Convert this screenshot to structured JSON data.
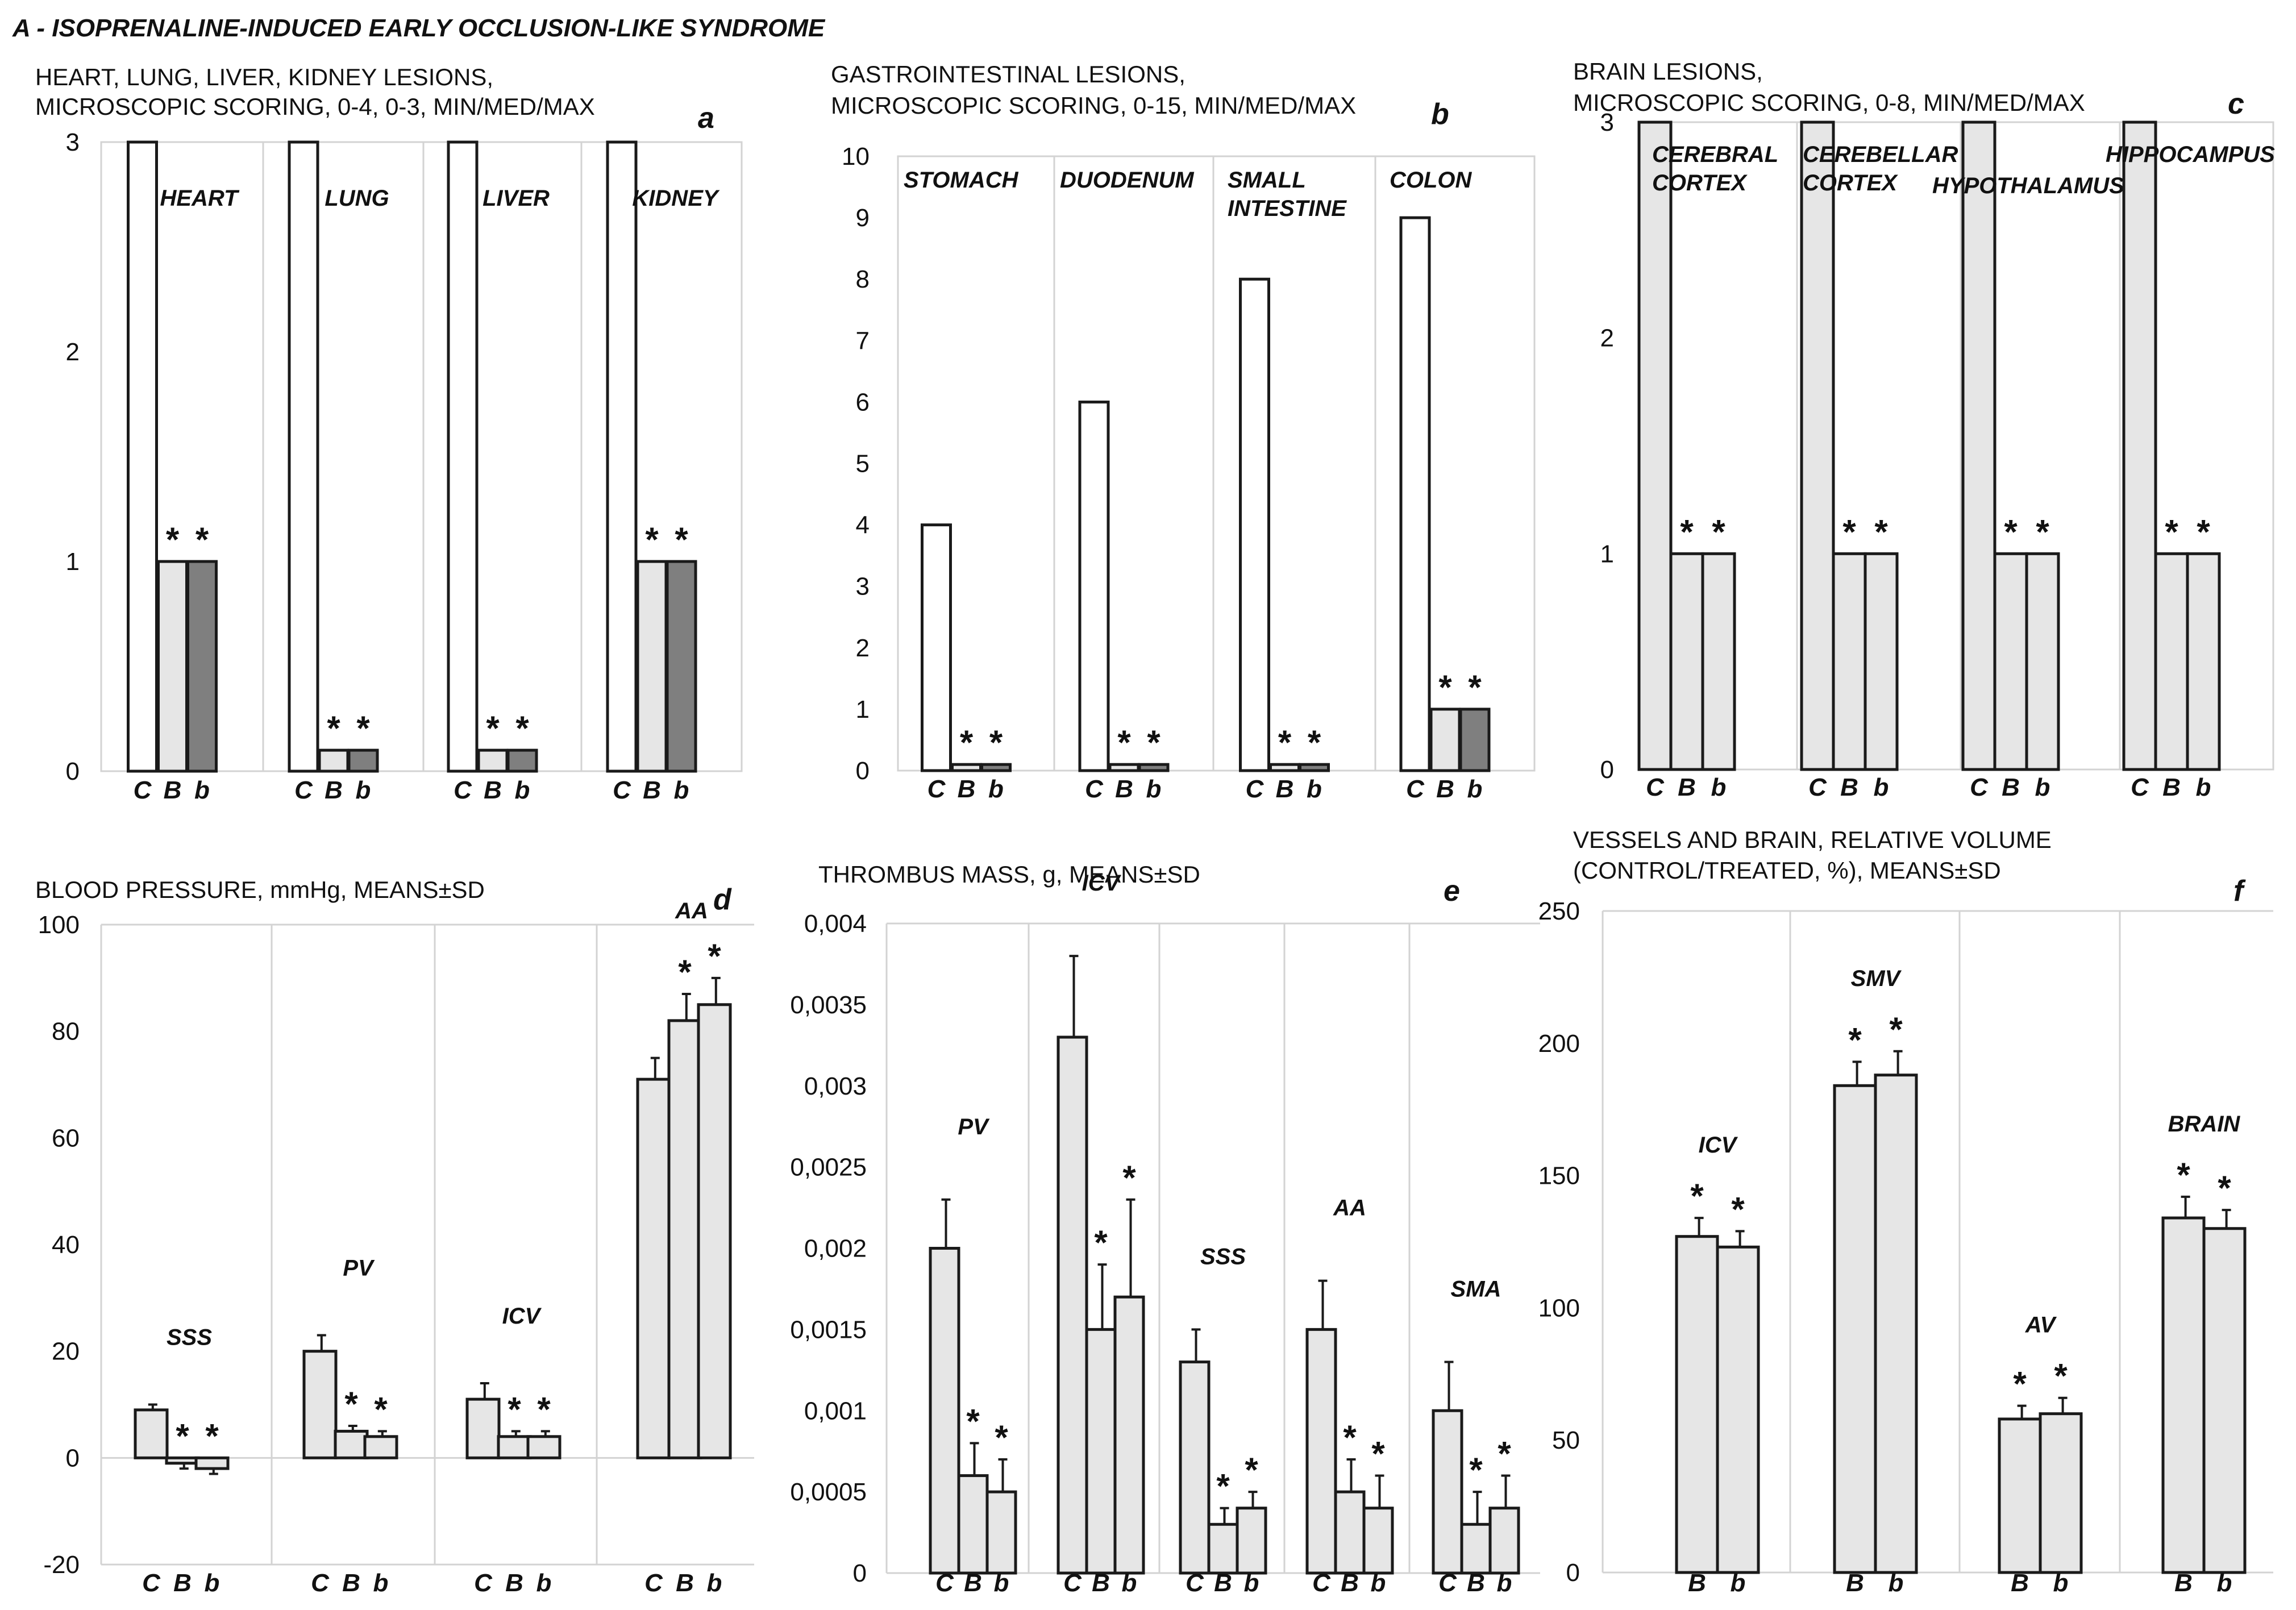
{
  "main_title": "A - ISOPRENALINE-INDUCED EARLY OCCLUSION-LIKE SYNDROME",
  "colors": {
    "white": "#ffffff",
    "light": "#e6e6e6",
    "dark": "#7f7f7f",
    "outline": "#1a1a1a",
    "grid": "#d3d3d3"
  },
  "chart_data": [
    {
      "id": "a",
      "type": "bar",
      "title_lines": [
        "HEART, LUNG, LIVER, KIDNEY LESIONS,",
        "MICROSCOPIC SCORING, 0-4, 0-3, MIN/MED/MAX"
      ],
      "panel_letter": "a",
      "ylim": [
        0,
        3
      ],
      "ticks": [
        0,
        1,
        2,
        3
      ],
      "tick_labels": [
        "0",
        "1",
        "2",
        "3"
      ],
      "groups": [
        {
          "name": "HEART",
          "bars": [
            {
              "label": "C",
              "value": 3,
              "color": "white"
            },
            {
              "label": "B",
              "value": 1,
              "color": "light",
              "star": "*"
            },
            {
              "label": "b",
              "value": 1,
              "color": "dark",
              "star": "*"
            }
          ]
        },
        {
          "name": "LUNG",
          "bars": [
            {
              "label": "C",
              "value": 3,
              "color": "white"
            },
            {
              "label": "B",
              "value": 0.1,
              "color": "light",
              "star": "*"
            },
            {
              "label": "b",
              "value": 0.1,
              "color": "dark",
              "star": "*"
            }
          ]
        },
        {
          "name": "LIVER",
          "bars": [
            {
              "label": "C",
              "value": 3,
              "color": "white"
            },
            {
              "label": "B",
              "value": 0.1,
              "color": "light",
              "star": "*"
            },
            {
              "label": "b",
              "value": 0.1,
              "color": "dark",
              "star": "*"
            }
          ]
        },
        {
          "name": "KIDNEY",
          "bars": [
            {
              "label": "C",
              "value": 3,
              "color": "white"
            },
            {
              "label": "B",
              "value": 1,
              "color": "light",
              "star": "*"
            },
            {
              "label": "b",
              "value": 1,
              "color": "dark",
              "star": "*"
            }
          ]
        }
      ]
    },
    {
      "id": "b",
      "type": "bar",
      "title_lines": [
        "GASTROINTESTINAL LESIONS,",
        "MICROSCOPIC SCORING, 0-15, MIN/MED/MAX"
      ],
      "panel_letter": "b",
      "ylim": [
        0,
        10
      ],
      "ticks": [
        0,
        1,
        2,
        3,
        4,
        5,
        6,
        7,
        8,
        9,
        10
      ],
      "tick_labels": [
        "0",
        "1",
        "2",
        "3",
        "4",
        "5",
        "6",
        "7",
        "8",
        "9",
        "10"
      ],
      "groups": [
        {
          "name": "STOMACH",
          "bars": [
            {
              "label": "C",
              "value": 4,
              "color": "white"
            },
            {
              "label": "B",
              "value": 0.1,
              "color": "light",
              "star": "*"
            },
            {
              "label": "b",
              "value": 0.1,
              "color": "dark",
              "star": "*"
            }
          ]
        },
        {
          "name": "DUODENUM",
          "bars": [
            {
              "label": "C",
              "value": 6,
              "color": "white"
            },
            {
              "label": "B",
              "value": 0.1,
              "color": "light",
              "star": "*"
            },
            {
              "label": "b",
              "value": 0.1,
              "color": "dark",
              "star": "*"
            }
          ]
        },
        {
          "name": "SMALL INTESTINE",
          "bars": [
            {
              "label": "C",
              "value": 8,
              "color": "white"
            },
            {
              "label": "B",
              "value": 0.1,
              "color": "light",
              "star": "*"
            },
            {
              "label": "b",
              "value": 0.1,
              "color": "dark",
              "star": "*"
            }
          ]
        },
        {
          "name": "COLON",
          "bars": [
            {
              "label": "C",
              "value": 9,
              "color": "white"
            },
            {
              "label": "B",
              "value": 1,
              "color": "light",
              "star": "*"
            },
            {
              "label": "b",
              "value": 1,
              "color": "dark",
              "star": "*"
            }
          ]
        }
      ]
    },
    {
      "id": "c",
      "type": "bar",
      "title_lines": [
        "BRAIN LESIONS,",
        "MICROSCOPIC SCORING, 0-8, MIN/MED/MAX"
      ],
      "panel_letter": "c",
      "ylim": [
        0,
        3
      ],
      "ticks": [
        0,
        1,
        2,
        3
      ],
      "tick_labels": [
        "0",
        "1",
        "2",
        "3"
      ],
      "groups": [
        {
          "name": "CEREBRAL CORTEX",
          "bars": [
            {
              "label": "C",
              "value": 3,
              "color": "light"
            },
            {
              "label": "B",
              "value": 1,
              "color": "light",
              "star": "*"
            },
            {
              "label": "b",
              "value": 1,
              "color": "light",
              "star": "*"
            }
          ]
        },
        {
          "name": "CEREBELLAR CORTEX",
          "bars": [
            {
              "label": "C",
              "value": 3,
              "color": "light"
            },
            {
              "label": "B",
              "value": 1,
              "color": "light",
              "star": "*"
            },
            {
              "label": "b",
              "value": 1,
              "color": "light",
              "star": "*"
            }
          ]
        },
        {
          "name": "HYPOTHALAMUS",
          "bars": [
            {
              "label": "C",
              "value": 3,
              "color": "light"
            },
            {
              "label": "B",
              "value": 1,
              "color": "light",
              "star": "*"
            },
            {
              "label": "b",
              "value": 1,
              "color": "light",
              "star": "*"
            }
          ]
        },
        {
          "name": "HIPPOCAMPUS",
          "bars": [
            {
              "label": "C",
              "value": 3,
              "color": "light"
            },
            {
              "label": "B",
              "value": 1,
              "color": "light",
              "star": "*"
            },
            {
              "label": "b",
              "value": 1,
              "color": "light",
              "star": "*"
            }
          ]
        }
      ]
    },
    {
      "id": "d",
      "type": "bar",
      "title_lines": [
        "BLOOD PRESSURE, mmHg, MEANS±SD"
      ],
      "panel_letter": "d",
      "ylim": [
        -20,
        100
      ],
      "ticks": [
        -20,
        0,
        20,
        40,
        60,
        80,
        100
      ],
      "tick_labels": [
        "-20",
        "0",
        "20",
        "40",
        "60",
        "80",
        "100"
      ],
      "groups": [
        {
          "name": "SSS",
          "bars": [
            {
              "label": "C",
              "value": 9,
              "err": 1,
              "color": "light"
            },
            {
              "label": "B",
              "value": -1,
              "err": 1,
              "color": "light",
              "star": "*"
            },
            {
              "label": "b",
              "value": -2,
              "err": 1,
              "color": "light",
              "star": "*"
            }
          ]
        },
        {
          "name": "PV",
          "bars": [
            {
              "label": "C",
              "value": 20,
              "err": 3,
              "color": "light"
            },
            {
              "label": "B",
              "value": 5,
              "err": 1,
              "color": "light",
              "star": "*"
            },
            {
              "label": "b",
              "value": 4,
              "err": 1,
              "color": "light",
              "star": "*"
            }
          ]
        },
        {
          "name": "ICV",
          "bars": [
            {
              "label": "C",
              "value": 11,
              "err": 3,
              "color": "light"
            },
            {
              "label": "B",
              "value": 4,
              "err": 1,
              "color": "light",
              "star": "*"
            },
            {
              "label": "b",
              "value": 4,
              "err": 1,
              "color": "light",
              "star": "*"
            }
          ]
        },
        {
          "name": "AA",
          "bars": [
            {
              "label": "C",
              "value": 71,
              "err": 4,
              "color": "light"
            },
            {
              "label": "B",
              "value": 82,
              "err": 5,
              "color": "light",
              "star": "*"
            },
            {
              "label": "b",
              "value": 85,
              "err": 5,
              "color": "light",
              "star": "*"
            }
          ]
        }
      ]
    },
    {
      "id": "e",
      "type": "bar",
      "title_lines": [
        "THROMBUS MASS, g, MEANS±SD"
      ],
      "panel_letter": "e",
      "ylim": [
        0,
        0.004
      ],
      "ticks": [
        0,
        0.0005,
        0.001,
        0.0015,
        0.002,
        0.0025,
        0.003,
        0.0035,
        0.004
      ],
      "tick_labels": [
        "0",
        "0,0005",
        "0,001",
        "0,0015",
        "0,002",
        "0,0025",
        "0,003",
        "0,0035",
        "0,004"
      ],
      "groups": [
        {
          "name": "PV",
          "bars": [
            {
              "label": "C",
              "value": 0.002,
              "err": 0.0003,
              "color": "light"
            },
            {
              "label": "B",
              "value": 0.0006,
              "err": 0.0002,
              "color": "light",
              "star": "*"
            },
            {
              "label": "b",
              "value": 0.0005,
              "err": 0.0002,
              "color": "light",
              "star": "*"
            }
          ]
        },
        {
          "name": "ICV",
          "bars": [
            {
              "label": "C",
              "value": 0.0033,
              "err": 0.0005,
              "color": "light"
            },
            {
              "label": "B",
              "value": 0.0015,
              "err": 0.0004,
              "color": "light",
              "star": "*"
            },
            {
              "label": "b",
              "value": 0.0017,
              "err": 0.0006,
              "color": "light",
              "star": "*"
            }
          ]
        },
        {
          "name": "SSS",
          "bars": [
            {
              "label": "C",
              "value": 0.0013,
              "err": 0.0002,
              "color": "light"
            },
            {
              "label": "B",
              "value": 0.0003,
              "err": 0.0001,
              "color": "light",
              "star": "*"
            },
            {
              "label": "b",
              "value": 0.0004,
              "err": 0.0001,
              "color": "light",
              "star": "*"
            }
          ]
        },
        {
          "name": "AA",
          "bars": [
            {
              "label": "C",
              "value": 0.0015,
              "err": 0.0003,
              "color": "light"
            },
            {
              "label": "B",
              "value": 0.0005,
              "err": 0.0002,
              "color": "light",
              "star": "*"
            },
            {
              "label": "b",
              "value": 0.0004,
              "err": 0.0002,
              "color": "light",
              "star": "*"
            }
          ]
        },
        {
          "name": "SMA",
          "bars": [
            {
              "label": "C",
              "value": 0.001,
              "err": 0.0003,
              "color": "light"
            },
            {
              "label": "B",
              "value": 0.0003,
              "err": 0.0002,
              "color": "light",
              "star": "*"
            },
            {
              "label": "b",
              "value": 0.0004,
              "err": 0.0002,
              "color": "light",
              "star": "*"
            }
          ]
        }
      ]
    },
    {
      "id": "f",
      "type": "bar",
      "title_lines": [
        "VESSELS AND BRAIN, RELATIVE VOLUME",
        "(CONTROL/TREATED, %), MEANS±SD"
      ],
      "panel_letter": "f",
      "ylim": [
        0,
        250
      ],
      "ticks": [
        0,
        50,
        100,
        150,
        200,
        250
      ],
      "tick_labels": [
        "0",
        "50",
        "100",
        "150",
        "200",
        "250"
      ],
      "groups": [
        {
          "name": "ICV",
          "bars": [
            {
              "label": "B",
              "value": 127,
              "err": 7,
              "color": "light",
              "star": "*"
            },
            {
              "label": "b",
              "value": 123,
              "err": 6,
              "color": "light",
              "star": "*"
            }
          ]
        },
        {
          "name": "SMV",
          "bars": [
            {
              "label": "B",
              "value": 184,
              "err": 9,
              "color": "light",
              "star": "*"
            },
            {
              "label": "b",
              "value": 188,
              "err": 9,
              "color": "light",
              "star": "*"
            }
          ]
        },
        {
          "name": "AV",
          "bars": [
            {
              "label": "B",
              "value": 58,
              "err": 5,
              "color": "light",
              "star": "*"
            },
            {
              "label": "b",
              "value": 60,
              "err": 6,
              "color": "light",
              "star": "*"
            }
          ]
        },
        {
          "name": "BRAIN",
          "bars": [
            {
              "label": "B",
              "value": 134,
              "err": 8,
              "color": "light",
              "star": "*"
            },
            {
              "label": "b",
              "value": 130,
              "err": 7,
              "color": "light",
              "star": "*"
            }
          ]
        }
      ]
    }
  ]
}
